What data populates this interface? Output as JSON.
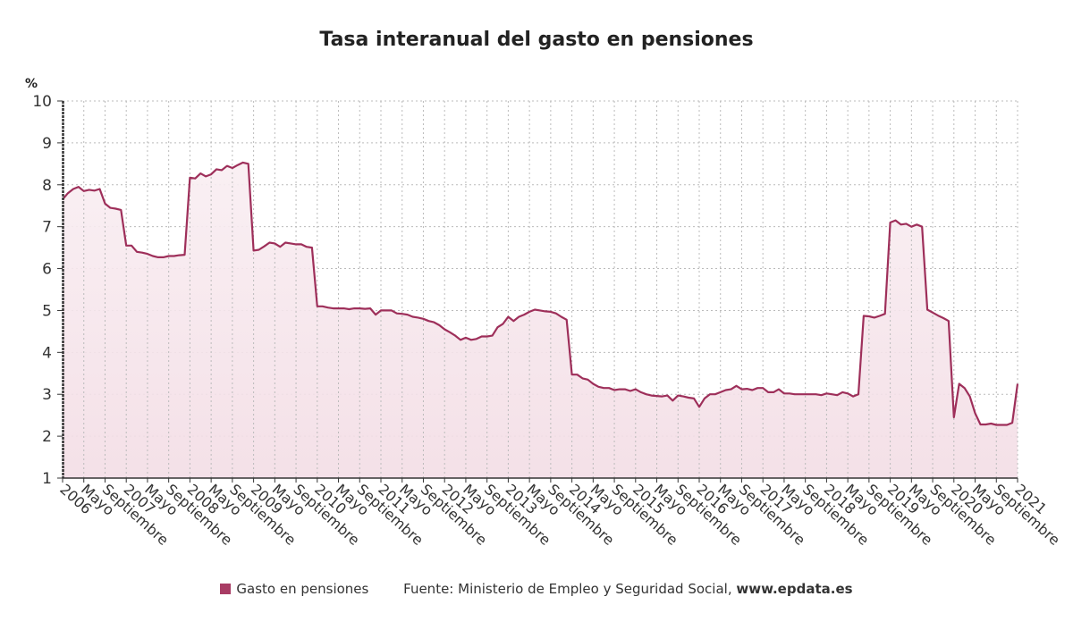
{
  "chart_data": {
    "type": "area",
    "title": "Tasa interanual del gasto en pensiones",
    "ylabel": "%",
    "xlabel": "",
    "ylim": [
      1,
      10
    ],
    "yticks": [
      1,
      2,
      3,
      4,
      5,
      6,
      7,
      8,
      9,
      10
    ],
    "grid": true,
    "x_start": "2006-01",
    "x_end": "2021-01",
    "x_frequency": "monthly",
    "x_tick_labels": [
      "2006",
      "Mayo",
      "Septiembre",
      "2007",
      "Mayo",
      "Septiembre",
      "2008",
      "Mayo",
      "Septiembre",
      "2009",
      "Mayo",
      "Septiembre",
      "2010",
      "Mayo",
      "Septiembre",
      "2011",
      "Mayo",
      "Septiembre",
      "2012",
      "Mayo",
      "Septiembre",
      "2013",
      "Mayo",
      "Septiembre",
      "2014",
      "Mayo",
      "Septiembre",
      "2015",
      "Mayo",
      "Septiembre",
      "2016",
      "Mayo",
      "Septiembre",
      "2017",
      "Mayo",
      "Septiembre",
      "2018",
      "Mayo",
      "Septiembre",
      "2019",
      "Mayo",
      "Septiembre",
      "2020",
      "Mayo",
      "Septiembre",
      "2021"
    ],
    "series": [
      {
        "name": "Gasto en pensiones",
        "color": "#9e2f5a",
        "values": [
          7.65,
          7.8,
          7.9,
          7.95,
          7.85,
          7.88,
          7.86,
          7.9,
          7.55,
          7.45,
          7.43,
          7.4,
          6.55,
          6.55,
          6.4,
          6.38,
          6.35,
          6.3,
          6.27,
          6.27,
          6.3,
          6.3,
          6.32,
          6.33,
          8.17,
          8.15,
          8.27,
          8.2,
          8.25,
          8.37,
          8.35,
          8.45,
          8.4,
          8.47,
          8.53,
          8.5,
          6.43,
          6.45,
          6.53,
          6.62,
          6.6,
          6.52,
          6.62,
          6.6,
          6.58,
          6.58,
          6.52,
          6.5,
          5.1,
          5.1,
          5.07,
          5.05,
          5.05,
          5.05,
          5.03,
          5.05,
          5.05,
          5.04,
          5.05,
          4.9,
          5.0,
          5.0,
          5.0,
          4.93,
          4.92,
          4.9,
          4.85,
          4.83,
          4.8,
          4.75,
          4.72,
          4.65,
          4.55,
          4.48,
          4.4,
          4.3,
          4.35,
          4.3,
          4.32,
          4.38,
          4.38,
          4.4,
          4.6,
          4.68,
          4.85,
          4.75,
          4.85,
          4.9,
          4.97,
          5.02,
          5.0,
          4.98,
          4.97,
          4.93,
          4.85,
          4.78,
          3.47,
          3.47,
          3.38,
          3.35,
          3.25,
          3.18,
          3.15,
          3.15,
          3.1,
          3.12,
          3.12,
          3.08,
          3.12,
          3.05,
          3.0,
          2.97,
          2.96,
          2.95,
          2.97,
          2.85,
          2.97,
          2.95,
          2.92,
          2.9,
          2.7,
          2.9,
          3.0,
          3.0,
          3.05,
          3.1,
          3.12,
          3.2,
          3.12,
          3.13,
          3.1,
          3.15,
          3.15,
          3.05,
          3.05,
          3.12,
          3.02,
          3.02,
          3.0,
          3.0,
          3.0,
          3.0,
          3.0,
          2.98,
          3.02,
          3.0,
          2.98,
          3.05,
          3.02,
          2.95,
          3.0,
          4.87,
          4.86,
          4.83,
          4.87,
          4.92,
          7.1,
          7.15,
          7.05,
          7.07,
          7.0,
          7.05,
          7.0,
          5.02,
          4.95,
          4.88,
          4.82,
          4.75,
          2.45,
          3.25,
          3.15,
          2.95,
          2.55,
          2.28,
          2.28,
          2.3,
          2.27,
          2.27,
          2.27,
          2.32,
          3.25
        ]
      }
    ],
    "legend": "bottom"
  },
  "footer": {
    "legend_label": "Gasto en pensiones",
    "source": "Fuente: Ministerio de Empleo y Seguridad Social,",
    "website": "www.epdata.es"
  }
}
